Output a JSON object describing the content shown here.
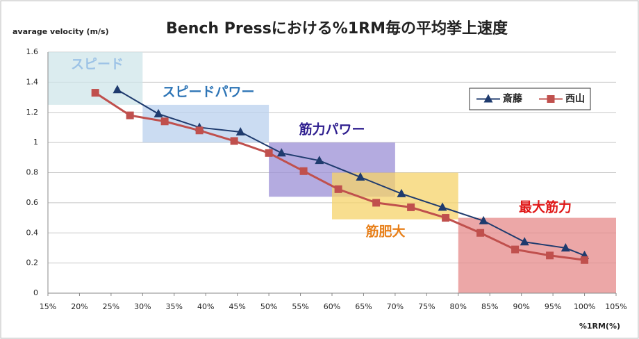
{
  "chart_data": {
    "type": "line",
    "title": "Bench Pressにおける%1RM毎の平均挙上速度",
    "y_label": "avarage velocity (m/s)",
    "x_label": "%1RM(%)",
    "xlim": [
      15,
      105
    ],
    "xticks": [
      {
        "value": 15,
        "label": "15%"
      },
      {
        "value": 20,
        "label": "20%"
      },
      {
        "value": 25,
        "label": "25%"
      },
      {
        "value": 30,
        "label": "30%"
      },
      {
        "value": 35,
        "label": "35%"
      },
      {
        "value": 40,
        "label": "40%"
      },
      {
        "value": 45,
        "label": "45%"
      },
      {
        "value": 50,
        "label": "50%"
      },
      {
        "value": 55,
        "label": "55%"
      },
      {
        "value": 60,
        "label": "60%"
      },
      {
        "value": 65,
        "label": "65%"
      },
      {
        "value": 70,
        "label": "70%"
      },
      {
        "value": 75,
        "label": "75%"
      },
      {
        "value": 80,
        "label": "80%"
      },
      {
        "value": 85,
        "label": "85%"
      },
      {
        "value": 90,
        "label": "90%"
      },
      {
        "value": 95,
        "label": "95%"
      },
      {
        "value": 100,
        "label": "100%"
      },
      {
        "value": 105,
        "label": "105%"
      }
    ],
    "ylim": [
      0,
      1.6
    ],
    "yticks": [
      0,
      0.2,
      0.4,
      0.6,
      0.8,
      1,
      1.2,
      1.4,
      1.6
    ],
    "grid": true,
    "legend": "upper right",
    "zones": [
      {
        "label": "スピード",
        "x": [
          15,
          30
        ],
        "y": [
          1.25,
          1.6
        ],
        "color": "#cfe6ea",
        "text_color": "#9dc3e6"
      },
      {
        "label": "スピードパワー",
        "x": [
          30,
          50
        ],
        "y": [
          1.0,
          1.25
        ],
        "color": "#b9d0ee",
        "text_color": "#2e75b6"
      },
      {
        "label": "筋力パワー",
        "x": [
          50,
          70
        ],
        "y": [
          0.64,
          1.0
        ],
        "color": "#9b8fd6",
        "text_color": "#2f1f8f"
      },
      {
        "label": "筋肥大",
        "x": [
          60,
          80
        ],
        "y": [
          0.49,
          0.8
        ],
        "color": "#f5d36a",
        "text_color": "#e8801a"
      },
      {
        "label": "最大筋力",
        "x": [
          80,
          105
        ],
        "y": [
          0,
          0.5
        ],
        "color": "#e58a8a",
        "text_color": "#e01818"
      }
    ],
    "series": [
      {
        "name": "斎藤",
        "color": "#1f3b6e",
        "marker": "triangle",
        "x": [
          26,
          32.5,
          39,
          45.5,
          52,
          58,
          64.5,
          71,
          77.5,
          84,
          90.5,
          97,
          100
        ],
        "values": [
          1.35,
          1.19,
          1.1,
          1.07,
          0.93,
          0.88,
          0.77,
          0.66,
          0.57,
          0.48,
          0.34,
          0.3,
          0.25
        ]
      },
      {
        "name": "西山",
        "color": "#c0504d",
        "marker": "square",
        "x": [
          22.5,
          28,
          33.5,
          39,
          44.5,
          50,
          55.5,
          61,
          67,
          72.5,
          78,
          83.5,
          89,
          94.5,
          100
        ],
        "values": [
          1.33,
          1.18,
          1.14,
          1.08,
          1.01,
          0.93,
          0.81,
          0.69,
          0.6,
          0.57,
          0.5,
          0.4,
          0.29,
          0.25,
          0.22
        ]
      }
    ]
  }
}
